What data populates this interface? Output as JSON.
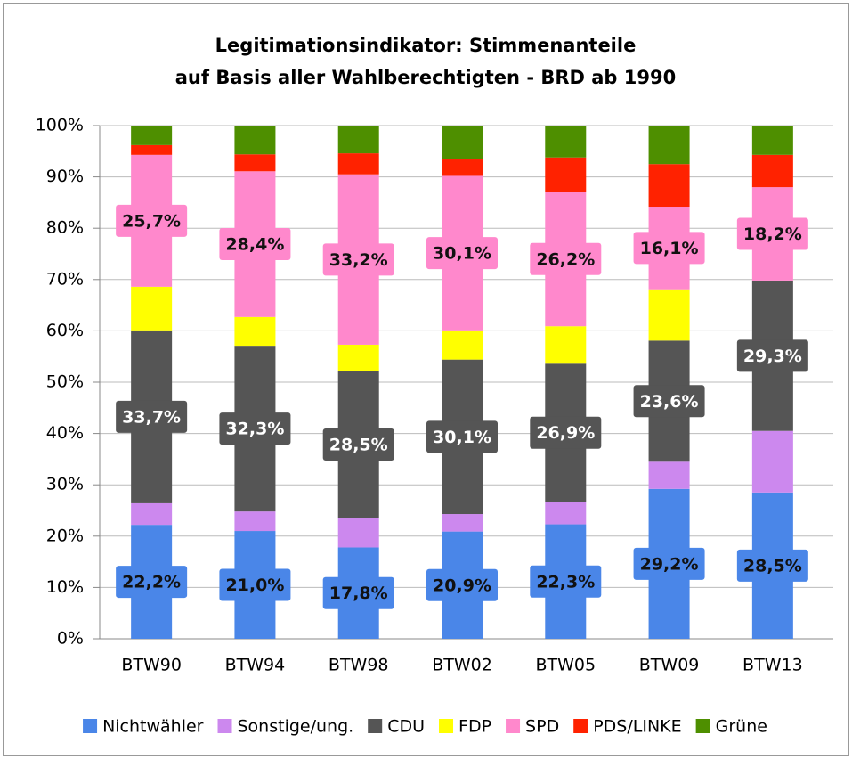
{
  "chart_data": {
    "type": "stacked_bar",
    "title": [
      "Legitimationsindikator: Stimmenanteile",
      "auf Basis aller Wahlberechtigten - BRD ab 1990"
    ],
    "categories": [
      "BTW90",
      "BTW94",
      "BTW98",
      "BTW02",
      "BTW05",
      "BTW09",
      "BTW13"
    ],
    "series": [
      {
        "name": "Nichtwähler",
        "color": "#4a86e8",
        "values": [
          22.2,
          21.0,
          17.8,
          20.9,
          22.3,
          29.2,
          28.5
        ],
        "value_labels": [
          "22,2%",
          "21,0%",
          "17,8%",
          "20,9%",
          "22,3%",
          "29,2%",
          "28,5%"
        ]
      },
      {
        "name": "Sonstige/ung.",
        "color": "#cc88ee",
        "values": [
          4.2,
          3.8,
          5.8,
          3.4,
          4.4,
          5.3,
          12.0
        ]
      },
      {
        "name": "CDU",
        "color": "#555555",
        "values": [
          33.7,
          32.3,
          28.5,
          30.1,
          26.9,
          23.6,
          29.3
        ],
        "value_labels": [
          "33,7%",
          "32,3%",
          "28,5%",
          "30,1%",
          "26,9%",
          "23,6%",
          "29,3%"
        ]
      },
      {
        "name": "FDP",
        "color": "#ffff00",
        "values": [
          8.5,
          5.6,
          5.2,
          5.7,
          7.3,
          10.0,
          0
        ]
      },
      {
        "name": "SPD",
        "color": "#ff88cc",
        "values": [
          25.7,
          28.4,
          33.2,
          30.1,
          26.2,
          16.1,
          18.2
        ],
        "value_labels": [
          "25,7%",
          "28,4%",
          "33,2%",
          "30,1%",
          "26,2%",
          "16,1%",
          "18,2%"
        ]
      },
      {
        "name": "PDS/LINKE",
        "color": "#ff2200",
        "values": [
          1.9,
          3.3,
          4.1,
          3.2,
          6.7,
          8.3,
          6.3
        ]
      },
      {
        "name": "Grüne",
        "color": "#4e8f00",
        "values": [
          3.8,
          5.6,
          5.4,
          6.6,
          6.2,
          7.5,
          5.7
        ]
      }
    ],
    "ylim": [
      0,
      100
    ],
    "yticks": [
      {
        "value": 0,
        "label": "0%"
      },
      {
        "value": 10,
        "label": "10%"
      },
      {
        "value": 20,
        "label": "20%"
      },
      {
        "value": 30,
        "label": "30%"
      },
      {
        "value": 40,
        "label": "40%"
      },
      {
        "value": 50,
        "label": "50%"
      },
      {
        "value": 60,
        "label": "60%"
      },
      {
        "value": 70,
        "label": "70%"
      },
      {
        "value": 80,
        "label": "80%"
      },
      {
        "value": 90,
        "label": "90%"
      },
      {
        "value": 100,
        "label": "100%"
      }
    ],
    "grid": true,
    "legend": "bottom"
  }
}
